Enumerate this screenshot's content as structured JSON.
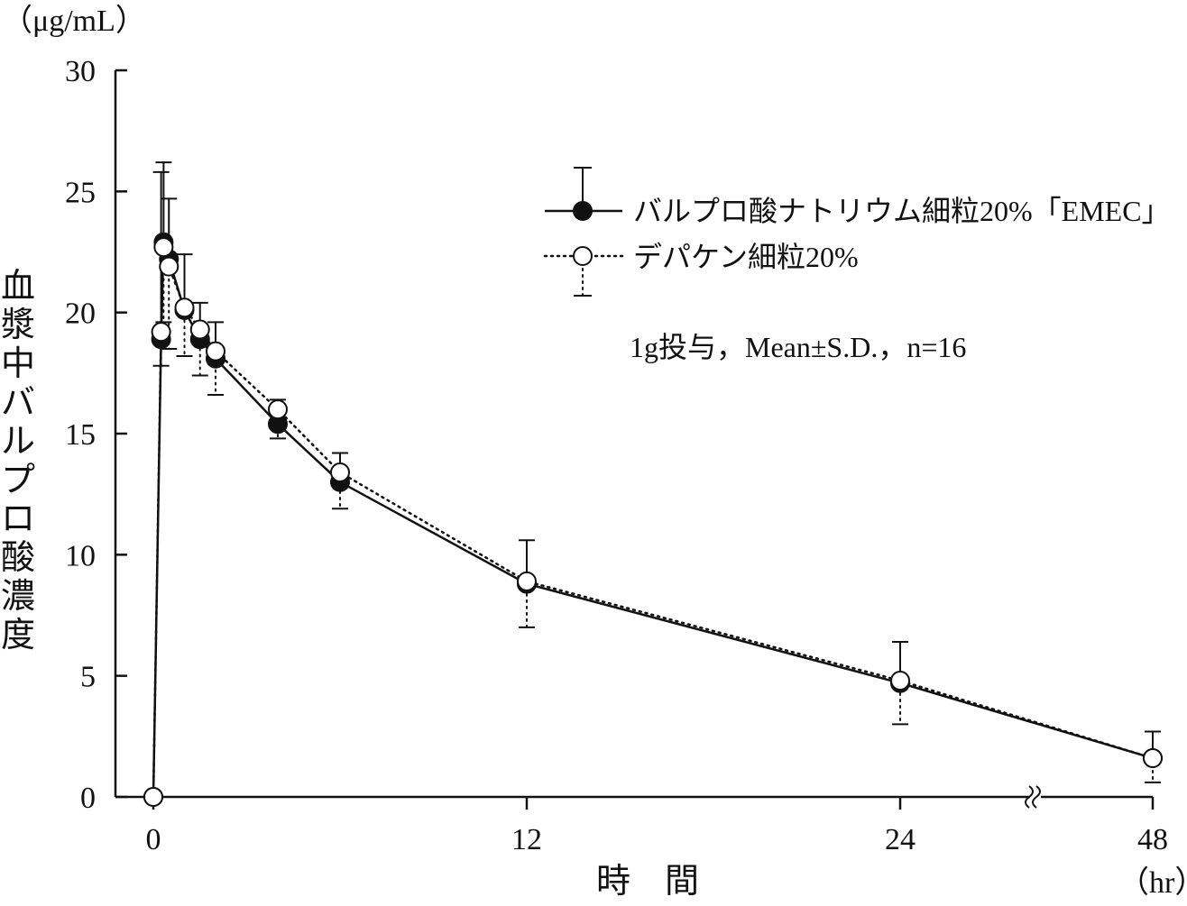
{
  "chart_data": {
    "type": "line",
    "y_unit": "（μg/mL）",
    "ylabel": "血漿中バルプロ酸濃度",
    "xlabel": "時　間",
    "x_unit": "（hr）",
    "ylim": [
      0,
      30
    ],
    "y_ticks": [
      "0",
      "5",
      "10",
      "15",
      "20",
      "25",
      "30"
    ],
    "x_ticks": [
      {
        "value": 0,
        "label": "0"
      },
      {
        "value": 12,
        "label": "12"
      },
      {
        "value": 24,
        "label": "24"
      },
      {
        "value": 48,
        "label": "48"
      }
    ],
    "axis_break": true,
    "annotation": "1g投与，Mean±S.D.，n=16",
    "legend_position": "top-right",
    "series": [
      {
        "name": "バルプロ酸ナトリウム細粒20%「EMEC」",
        "marker": "filled-circle",
        "line_style": "solid",
        "x": [
          0,
          0.25,
          0.33,
          0.5,
          1,
          1.5,
          2,
          4,
          6,
          12,
          24,
          48
        ],
        "y": [
          0,
          18.9,
          22.9,
          22.2,
          20.1,
          18.9,
          18.1,
          15.4,
          13.0,
          8.8,
          4.7,
          1.6
        ],
        "sd": [
          0,
          6.9,
          3.3,
          2.5,
          2.3,
          1.5,
          1.5,
          1.0,
          1.2,
          1.8,
          1.7,
          1.1
        ]
      },
      {
        "name": "デパケン細粒20%",
        "marker": "open-circle",
        "line_style": "dotted",
        "x": [
          0,
          0.25,
          0.33,
          0.5,
          1,
          1.5,
          2,
          4,
          6,
          12,
          24,
          48
        ],
        "y": [
          0,
          19.2,
          22.7,
          21.9,
          20.2,
          19.3,
          18.4,
          16.0,
          13.4,
          8.9,
          4.8,
          1.6
        ],
        "sd": [
          0,
          1.4,
          3.1,
          3.4,
          2.0,
          1.9,
          1.8,
          1.2,
          1.5,
          1.9,
          1.8,
          1.0
        ]
      }
    ]
  }
}
